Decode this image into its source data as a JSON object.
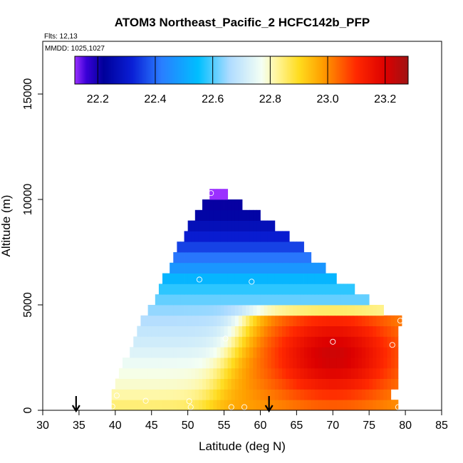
{
  "chart_data": {
    "type": "heatmap",
    "title": "ATOM3 Northeast_Pacific_2 HCFC142b_PFP",
    "flights_label": "Flts: 12,13",
    "dates_label": "MMDD: 1025,1027",
    "xlabel": "Latitude (deg N)",
    "ylabel": "Altitude (m)",
    "xlim": [
      30,
      85
    ],
    "ylim": [
      0,
      17500
    ],
    "x_ticks": [
      "30",
      "35",
      "40",
      "45",
      "50",
      "55",
      "60",
      "65",
      "70",
      "75",
      "80",
      "85"
    ],
    "y_ticks": [
      "0",
      "5000",
      "10000",
      "15000"
    ],
    "colorbar": {
      "range": [
        22.12,
        23.28
      ],
      "ticks": [
        "22.2",
        "22.4",
        "22.6",
        "22.8",
        "23.0",
        "23.2"
      ],
      "tick_values": [
        22.2,
        22.4,
        22.6,
        22.8,
        23.0,
        23.2
      ],
      "stops": [
        {
          "v": 22.12,
          "c": "#9b30ff"
        },
        {
          "v": 22.16,
          "c": "#3a00d8"
        },
        {
          "v": 22.22,
          "c": "#00009a"
        },
        {
          "v": 22.32,
          "c": "#0a1fd6"
        },
        {
          "v": 22.42,
          "c": "#2a7dff"
        },
        {
          "v": 22.55,
          "c": "#00bfff"
        },
        {
          "v": 22.66,
          "c": "#b0dcff"
        },
        {
          "v": 22.77,
          "c": "#f4fff4"
        },
        {
          "v": 22.82,
          "c": "#fff6a0"
        },
        {
          "v": 22.9,
          "c": "#ffdc1e"
        },
        {
          "v": 22.98,
          "c": "#ffa000"
        },
        {
          "v": 23.1,
          "c": "#ff2800"
        },
        {
          "v": 23.2,
          "c": "#dc0000"
        },
        {
          "v": 23.28,
          "c": "#a01414"
        }
      ]
    },
    "field_extents": [
      {
        "alt": 250,
        "lat_min": 39.5,
        "lat_max": 79
      },
      {
        "alt": 750,
        "lat_min": 39.5,
        "lat_max": 78
      },
      {
        "alt": 1250,
        "lat_min": 40,
        "lat_max": 79
      },
      {
        "alt": 1750,
        "lat_min": 40.5,
        "lat_max": 79
      },
      {
        "alt": 2250,
        "lat_min": 41,
        "lat_max": 79
      },
      {
        "alt": 2750,
        "lat_min": 42,
        "lat_max": 79
      },
      {
        "alt": 3250,
        "lat_min": 42.5,
        "lat_max": 79
      },
      {
        "alt": 3750,
        "lat_min": 43,
        "lat_max": 79
      },
      {
        "alt": 4250,
        "lat_min": 43.5,
        "lat_max": 79.5
      },
      {
        "alt": 4750,
        "lat_min": 44.5,
        "lat_max": 77
      },
      {
        "alt": 5250,
        "lat_min": 45.5,
        "lat_max": 75
      },
      {
        "alt": 5750,
        "lat_min": 46,
        "lat_max": 73
      },
      {
        "alt": 6250,
        "lat_min": 46.5,
        "lat_max": 70.5
      },
      {
        "alt": 6750,
        "lat_min": 47.5,
        "lat_max": 69
      },
      {
        "alt": 7250,
        "lat_min": 48,
        "lat_max": 67
      },
      {
        "alt": 7750,
        "lat_min": 48.5,
        "lat_max": 66
      },
      {
        "alt": 8250,
        "lat_min": 49.5,
        "lat_max": 64
      },
      {
        "alt": 8750,
        "lat_min": 50,
        "lat_max": 62
      },
      {
        "alt": 9250,
        "lat_min": 51,
        "lat_max": 60
      },
      {
        "alt": 9750,
        "lat_min": 52,
        "lat_max": 57.5
      },
      {
        "alt": 10250,
        "lat_min": 53,
        "lat_max": 55.5
      }
    ],
    "field_model": {
      "anchors": [
        {
          "alt": 0,
          "v": 22.86
        },
        {
          "alt": 1000,
          "v": 22.8
        },
        {
          "alt": 2000,
          "v": 22.77
        },
        {
          "alt": 3000,
          "v": 22.72
        },
        {
          "alt": 4000,
          "v": 22.68
        },
        {
          "alt": 5000,
          "v": 22.63
        },
        {
          "alt": 6000,
          "v": 22.56
        },
        {
          "alt": 7000,
          "v": 22.44
        },
        {
          "alt": 8000,
          "v": 22.33
        },
        {
          "alt": 9000,
          "v": 22.25
        },
        {
          "alt": 10000,
          "v": 22.2
        }
      ],
      "plume": {
        "lat": 70,
        "alt": 2600,
        "peak": 23.22,
        "lat_width": 9,
        "alt_width": 2200
      },
      "plume_boundary": {
        "lat_at_ground": 53,
        "lat_at_top": 59,
        "top_alt": 5200
      },
      "summit_value": 22.12
    },
    "samples": [
      {
        "lat": 39.6,
        "alt": 180
      },
      {
        "lat": 40.2,
        "alt": 700
      },
      {
        "lat": 44.2,
        "alt": 450
      },
      {
        "lat": 50.2,
        "alt": 430
      },
      {
        "lat": 50.4,
        "alt": 150
      },
      {
        "lat": 53.2,
        "alt": 10300
      },
      {
        "lat": 51.6,
        "alt": 6200
      },
      {
        "lat": 58.8,
        "alt": 6100
      },
      {
        "lat": 55.2,
        "alt": 3400
      },
      {
        "lat": 56.0,
        "alt": 150
      },
      {
        "lat": 57.8,
        "alt": 150
      },
      {
        "lat": 70.0,
        "alt": 3250
      },
      {
        "lat": 79.3,
        "alt": 4250
      },
      {
        "lat": 78.2,
        "alt": 3100
      },
      {
        "lat": 79.0,
        "alt": 150
      }
    ],
    "arrows": [
      {
        "lat": 34.6
      },
      {
        "lat": 61.2
      }
    ],
    "legend": "colorbar-top-inside",
    "grid": false
  }
}
